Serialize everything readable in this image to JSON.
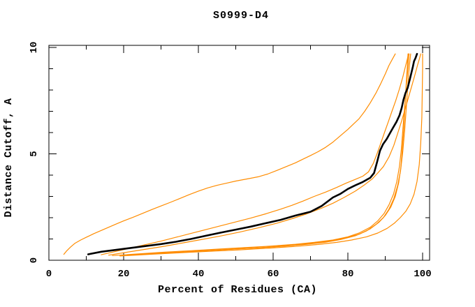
{
  "chart_data": {
    "type": "line",
    "title": "S0999-D4",
    "xlabel": "Percent of Residues (CA)",
    "ylabel": "Distance Cutoff, A",
    "xlim": [
      0,
      102
    ],
    "ylim": [
      0,
      10.1
    ],
    "grid": false,
    "legend": "none",
    "x_major_ticks": [
      0,
      20,
      40,
      60,
      80,
      100
    ],
    "x_minor_ticks": [
      10,
      30,
      50,
      70,
      90
    ],
    "y_major_ticks": [
      0,
      5,
      10
    ],
    "y_minor_ticks": [
      1,
      2,
      3,
      4,
      6,
      7,
      8,
      9
    ],
    "colors": {
      "model": "#ff8c00",
      "highlight": "#000000"
    },
    "series": [
      {
        "name": "orange-model-1",
        "color": "#ff8c00",
        "width": 1.2,
        "points": [
          [
            4,
            0.28
          ],
          [
            4.8,
            0.45
          ],
          [
            5.8,
            0.62
          ],
          [
            7,
            0.8
          ],
          [
            8.5,
            0.95
          ],
          [
            10,
            1.08
          ],
          [
            12,
            1.25
          ],
          [
            14,
            1.4
          ],
          [
            16,
            1.55
          ],
          [
            18,
            1.7
          ],
          [
            20,
            1.85
          ],
          [
            22.5,
            2.02
          ],
          [
            25,
            2.2
          ],
          [
            27.5,
            2.38
          ],
          [
            30,
            2.55
          ],
          [
            32.5,
            2.72
          ],
          [
            35,
            2.9
          ],
          [
            37.5,
            3.08
          ],
          [
            40,
            3.25
          ],
          [
            42.5,
            3.4
          ],
          [
            45,
            3.52
          ],
          [
            47.5,
            3.62
          ],
          [
            50,
            3.72
          ],
          [
            53,
            3.82
          ],
          [
            56,
            3.92
          ],
          [
            58.5,
            4.05
          ],
          [
            61,
            4.22
          ],
          [
            63.5,
            4.4
          ],
          [
            66,
            4.58
          ],
          [
            68,
            4.75
          ],
          [
            70,
            4.92
          ],
          [
            72,
            5.1
          ],
          [
            74,
            5.3
          ],
          [
            76,
            5.55
          ],
          [
            78,
            5.85
          ],
          [
            80,
            6.15
          ],
          [
            81.5,
            6.4
          ],
          [
            83,
            6.65
          ],
          [
            84.5,
            7.0
          ],
          [
            86,
            7.4
          ],
          [
            87.5,
            7.85
          ],
          [
            88.8,
            8.3
          ],
          [
            90,
            8.75
          ],
          [
            91,
            9.15
          ],
          [
            91.9,
            9.45
          ],
          [
            92.7,
            9.7
          ]
        ]
      },
      {
        "name": "orange-model-2",
        "color": "#ff8c00",
        "width": 1.2,
        "points": [
          [
            14,
            0.26
          ],
          [
            18,
            0.42
          ],
          [
            22,
            0.58
          ],
          [
            26,
            0.74
          ],
          [
            30,
            0.9
          ],
          [
            34,
            1.08
          ],
          [
            38,
            1.26
          ],
          [
            42,
            1.44
          ],
          [
            46,
            1.62
          ],
          [
            50,
            1.8
          ],
          [
            54,
            1.98
          ],
          [
            58,
            2.18
          ],
          [
            62,
            2.4
          ],
          [
            65,
            2.58
          ],
          [
            68,
            2.78
          ],
          [
            71,
            3.0
          ],
          [
            74,
            3.2
          ],
          [
            77,
            3.42
          ],
          [
            79.5,
            3.62
          ],
          [
            82,
            3.8
          ],
          [
            84,
            3.95
          ],
          [
            85.5,
            4.15
          ],
          [
            86.8,
            4.55
          ],
          [
            87.8,
            5.0
          ],
          [
            88.8,
            5.5
          ],
          [
            89.8,
            6.0
          ],
          [
            90.8,
            6.5
          ],
          [
            91.8,
            7.0
          ],
          [
            92.8,
            7.5
          ],
          [
            93.8,
            8.05
          ],
          [
            94.7,
            8.6
          ],
          [
            95.4,
            9.1
          ],
          [
            95.9,
            9.45
          ],
          [
            96.2,
            9.7
          ]
        ]
      },
      {
        "name": "orange-model-3",
        "color": "#ff8c00",
        "width": 1.2,
        "points": [
          [
            16,
            0.24
          ],
          [
            21,
            0.38
          ],
          [
            26,
            0.52
          ],
          [
            31,
            0.66
          ],
          [
            36,
            0.82
          ],
          [
            41,
            0.98
          ],
          [
            46,
            1.14
          ],
          [
            51,
            1.32
          ],
          [
            56,
            1.52
          ],
          [
            61,
            1.74
          ],
          [
            65,
            1.95
          ],
          [
            69,
            2.18
          ],
          [
            73,
            2.45
          ],
          [
            76,
            2.68
          ],
          [
            79,
            2.95
          ],
          [
            82,
            3.25
          ],
          [
            84.5,
            3.55
          ],
          [
            86.5,
            3.82
          ],
          [
            88,
            4.1
          ],
          [
            89.5,
            4.4
          ],
          [
            91,
            4.85
          ],
          [
            92.3,
            5.4
          ],
          [
            93.4,
            6.0
          ],
          [
            94.4,
            6.55
          ],
          [
            95.3,
            7.1
          ],
          [
            96.3,
            7.7
          ],
          [
            97.2,
            8.25
          ],
          [
            98,
            8.75
          ],
          [
            98.7,
            9.2
          ],
          [
            99.2,
            9.5
          ],
          [
            99.5,
            9.7
          ]
        ]
      },
      {
        "name": "orange-model-4",
        "color": "#ff8c00",
        "width": 1.2,
        "points": [
          [
            17,
            0.22
          ],
          [
            24,
            0.3
          ],
          [
            31,
            0.38
          ],
          [
            38,
            0.45
          ],
          [
            45,
            0.52
          ],
          [
            52,
            0.59
          ],
          [
            59,
            0.66
          ],
          [
            66,
            0.75
          ],
          [
            71,
            0.84
          ],
          [
            76,
            0.95
          ],
          [
            80,
            1.1
          ],
          [
            83,
            1.28
          ],
          [
            86,
            1.55
          ],
          [
            88,
            1.85
          ],
          [
            89.7,
            2.2
          ],
          [
            91,
            2.6
          ],
          [
            92.2,
            3.1
          ],
          [
            93.1,
            3.7
          ],
          [
            93.8,
            4.4
          ],
          [
            94.3,
            5.2
          ],
          [
            94.7,
            6.1
          ],
          [
            95.1,
            7.0
          ],
          [
            95.5,
            7.9
          ],
          [
            95.9,
            8.7
          ],
          [
            96.2,
            9.3
          ],
          [
            96.4,
            9.7
          ]
        ]
      },
      {
        "name": "orange-model-5",
        "color": "#ff8c00",
        "width": 1.2,
        "points": [
          [
            21,
            0.24
          ],
          [
            28,
            0.31
          ],
          [
            35,
            0.38
          ],
          [
            42,
            0.45
          ],
          [
            49,
            0.52
          ],
          [
            56,
            0.58
          ],
          [
            63,
            0.66
          ],
          [
            69,
            0.75
          ],
          [
            74,
            0.85
          ],
          [
            78,
            0.97
          ],
          [
            82,
            1.15
          ],
          [
            85,
            1.38
          ],
          [
            87.5,
            1.68
          ],
          [
            89.5,
            2.0
          ],
          [
            91,
            2.4
          ],
          [
            92.3,
            2.9
          ],
          [
            93.3,
            3.5
          ],
          [
            94.1,
            4.2
          ],
          [
            94.7,
            5.1
          ],
          [
            95.2,
            6.1
          ],
          [
            95.6,
            7.1
          ],
          [
            96,
            8.1
          ],
          [
            96.4,
            9.0
          ],
          [
            96.8,
            9.7
          ]
        ]
      },
      {
        "name": "orange-model-6",
        "color": "#ff8c00",
        "width": 1.2,
        "points": [
          [
            24,
            0.27
          ],
          [
            31,
            0.34
          ],
          [
            38,
            0.41
          ],
          [
            45,
            0.48
          ],
          [
            52,
            0.55
          ],
          [
            59,
            0.62
          ],
          [
            65,
            0.7
          ],
          [
            70,
            0.79
          ],
          [
            75,
            0.9
          ],
          [
            79,
            1.03
          ],
          [
            83,
            1.22
          ],
          [
            86,
            1.48
          ],
          [
            88.3,
            1.78
          ],
          [
            90,
            2.1
          ],
          [
            91.5,
            2.5
          ],
          [
            92.7,
            3.0
          ],
          [
            93.6,
            3.65
          ],
          [
            94.2,
            4.4
          ],
          [
            94.6,
            5.3
          ],
          [
            95,
            6.3
          ],
          [
            95.3,
            7.3
          ],
          [
            95.6,
            8.3
          ],
          [
            95.9,
            9.1
          ],
          [
            96.1,
            9.7
          ]
        ]
      },
      {
        "name": "orange-model-7",
        "color": "#ff8c00",
        "width": 1.2,
        "points": [
          [
            19,
            0.2
          ],
          [
            27,
            0.28
          ],
          [
            35,
            0.35
          ],
          [
            43,
            0.42
          ],
          [
            51,
            0.49
          ],
          [
            59,
            0.57
          ],
          [
            66,
            0.65
          ],
          [
            72,
            0.74
          ],
          [
            77,
            0.84
          ],
          [
            81,
            0.95
          ],
          [
            85,
            1.1
          ],
          [
            88,
            1.28
          ],
          [
            90.5,
            1.5
          ],
          [
            92.5,
            1.75
          ],
          [
            94,
            2.0
          ],
          [
            95.5,
            2.3
          ],
          [
            96.7,
            2.65
          ],
          [
            97.7,
            3.1
          ],
          [
            98.5,
            3.7
          ],
          [
            99.1,
            4.5
          ],
          [
            99.5,
            5.5
          ],
          [
            99.8,
            6.7
          ],
          [
            99.9,
            7.9
          ],
          [
            100,
            9.0
          ],
          [
            100,
            9.7
          ]
        ]
      },
      {
        "name": "highlighted-model",
        "color": "#000000",
        "width": 2.6,
        "points": [
          [
            10.5,
            0.28
          ],
          [
            14,
            0.4
          ],
          [
            18,
            0.49
          ],
          [
            22,
            0.58
          ],
          [
            26,
            0.67
          ],
          [
            30,
            0.76
          ],
          [
            34,
            0.87
          ],
          [
            38,
            1.0
          ],
          [
            42,
            1.15
          ],
          [
            46,
            1.3
          ],
          [
            50,
            1.44
          ],
          [
            54,
            1.58
          ],
          [
            58,
            1.74
          ],
          [
            62,
            1.9
          ],
          [
            66,
            2.1
          ],
          [
            70,
            2.28
          ],
          [
            73,
            2.55
          ],
          [
            76,
            2.95
          ],
          [
            78,
            3.12
          ],
          [
            80,
            3.35
          ],
          [
            82,
            3.52
          ],
          [
            84,
            3.68
          ],
          [
            86,
            3.88
          ],
          [
            87,
            4.1
          ],
          [
            87.8,
            4.6
          ],
          [
            88.6,
            5.15
          ],
          [
            89.4,
            5.45
          ],
          [
            90.4,
            5.7
          ],
          [
            91.2,
            5.95
          ],
          [
            92,
            6.2
          ],
          [
            93,
            6.5
          ],
          [
            93.8,
            6.8
          ],
          [
            94.4,
            7.15
          ],
          [
            94.9,
            7.55
          ],
          [
            95.4,
            7.85
          ],
          [
            96,
            8.1
          ],
          [
            96.5,
            8.45
          ],
          [
            97,
            8.8
          ],
          [
            97.4,
            9.1
          ],
          [
            97.7,
            9.35
          ],
          [
            98.1,
            9.5
          ],
          [
            98.5,
            9.7
          ]
        ]
      }
    ]
  }
}
